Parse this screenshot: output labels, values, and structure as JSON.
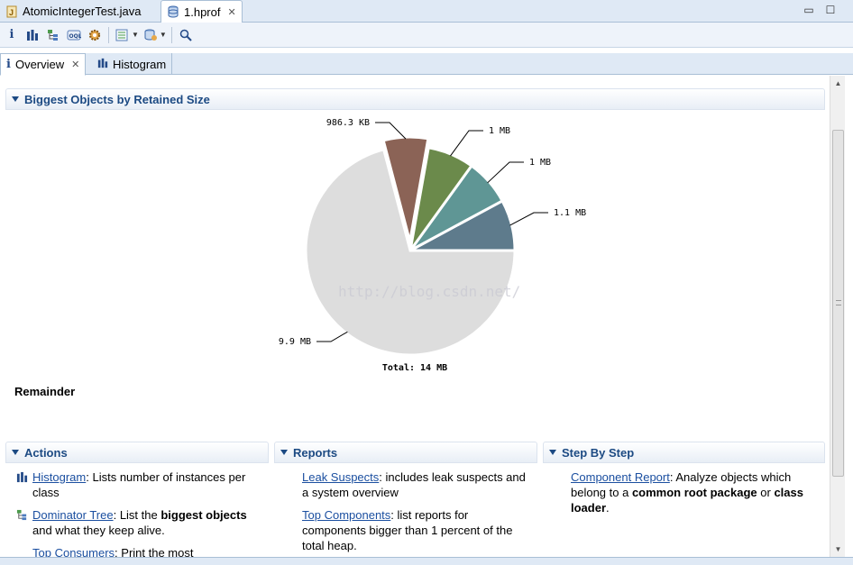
{
  "editor_tabs": [
    {
      "label": "AtomicIntegerTest.java",
      "icon": "java-file-icon",
      "active": false
    },
    {
      "label": "1.hprof",
      "icon": "heap-dump-icon",
      "active": true
    }
  ],
  "toolbar": {
    "items": [
      "info-icon",
      "histogram-icon",
      "dominator-tree-icon",
      "oql-icon",
      "gear-icon",
      "report-icon",
      "query-browser-icon",
      "search-icon"
    ]
  },
  "view_tabs": [
    {
      "label": "Overview",
      "active": true
    },
    {
      "label": "Histogram",
      "active": false
    }
  ],
  "biggest_objects": {
    "heading": "Biggest Objects by Retained Size",
    "remainder_label": "Remainder",
    "watermark": "http://blog.csdn.net/"
  },
  "chart_data": {
    "type": "pie",
    "title": "",
    "total_label": "Total: 14 MB",
    "slices": [
      {
        "label": "1.1 MB",
        "value": 1.1,
        "color": "#5e7b8c"
      },
      {
        "label": "1 MB",
        "value": 1.0,
        "color": "#5f9695"
      },
      {
        "label": "1 MB",
        "value": 1.0,
        "color": "#6b8a4b"
      },
      {
        "label": "986.3 KB",
        "value": 0.96,
        "color": "#8b6356",
        "exploded": true
      },
      {
        "label": "9.9 MB",
        "value": 9.9,
        "color": "#dddddd"
      }
    ]
  },
  "actions": {
    "heading": "Actions",
    "histogram": {
      "link": "Histogram",
      "text": ": Lists number of instances per class"
    },
    "dominator": {
      "link": "Dominator Tree",
      "pre": ": List the ",
      "bold": "biggest objects",
      "post": " and what they keep alive."
    },
    "consumers": {
      "link": "Top Consumers",
      "text": ": Print the most"
    }
  },
  "reports": {
    "heading": "Reports",
    "leak": {
      "link": "Leak Suspects",
      "text": ": includes leak suspects and a system overview"
    },
    "top": {
      "link": "Top Components",
      "text": ": list reports for components bigger than 1 percent of the total heap."
    }
  },
  "step_by_step": {
    "heading": "Step By Step",
    "component": {
      "link": "Component Report",
      "pre": ": Analyze objects which belong to a ",
      "bold1": "common root package",
      "mid": " or ",
      "bold2": "class loader",
      "post": "."
    }
  }
}
